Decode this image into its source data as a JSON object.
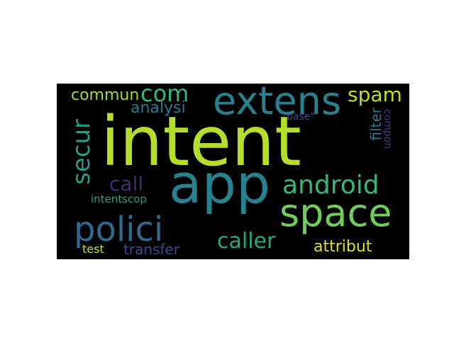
{
  "wordcloud": {
    "words": {
      "intent": {
        "text": "intent",
        "color": "#b5de2b"
      },
      "app": {
        "text": "app",
        "color": "#26828e"
      },
      "extens": {
        "text": "extens",
        "color": "#26828e"
      },
      "space": {
        "text": "space",
        "color": "#6ece58"
      },
      "polici": {
        "text": "polici",
        "color": "#31688e"
      },
      "android": {
        "text": "android",
        "color": "#35b779"
      },
      "secur": {
        "text": "secur",
        "color": "#1f9e89"
      },
      "com": {
        "text": "com",
        "color": "#35b779"
      },
      "spam": {
        "text": "spam",
        "color": "#bddf26"
      },
      "commun": {
        "text": "commun",
        "color": "#a0da39"
      },
      "caller": {
        "text": "caller",
        "color": "#22a884"
      },
      "call": {
        "text": "call",
        "color": "#482878"
      },
      "analysi": {
        "text": "analysi",
        "color": "#2a788e"
      },
      "attribut": {
        "text": "attribut",
        "color": "#dde318"
      },
      "transfer": {
        "text": "transfer",
        "color": "#3e4989"
      },
      "filter": {
        "text": "filter",
        "color": "#2a788e"
      },
      "compon": {
        "text": "compon",
        "color": "#443983"
      },
      "base": {
        "text": "base\"",
        "color": "#3e4989"
      },
      "intentscop": {
        "text": "intentscop",
        "color": "#1fa187"
      },
      "test": {
        "text": "test",
        "color": "#c2df23"
      }
    }
  }
}
